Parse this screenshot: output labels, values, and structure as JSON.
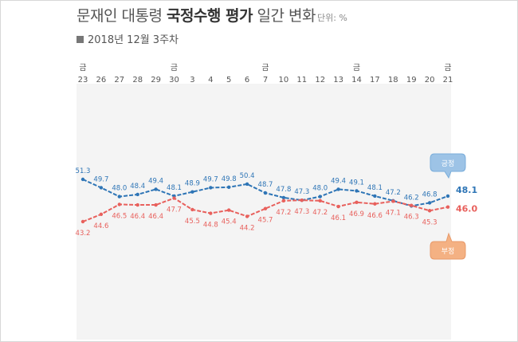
{
  "header": {
    "title_pre": "문재인 대통령 ",
    "title_bold": "국정수행 평가",
    "title_post": " 일간 변화",
    "unit": "단위: %",
    "subtitle": "2018년 12월 3주차"
  },
  "colors": {
    "positive": "#2E75B6",
    "negative": "#E8605C",
    "positive_bubble": "#9DC3E6",
    "negative_bubble": "#F4B183"
  },
  "chart_data": {
    "type": "line",
    "categories": [
      "23",
      "26",
      "27",
      "28",
      "29",
      "30",
      "3",
      "4",
      "5",
      "6",
      "7",
      "10",
      "11",
      "12",
      "13",
      "14",
      "17",
      "18",
      "19",
      "20",
      "21"
    ],
    "weekday_marks": [
      "금",
      "",
      "",
      "",
      "",
      "금",
      "",
      "",
      "",
      "",
      "금",
      "",
      "",
      "",
      "",
      "금",
      "",
      "",
      "",
      "",
      "금"
    ],
    "series": [
      {
        "name": "긍정",
        "values": [
          51.3,
          49.7,
          48.0,
          48.4,
          49.4,
          48.1,
          48.9,
          49.7,
          49.8,
          50.4,
          48.7,
          47.8,
          47.3,
          48.0,
          49.4,
          49.1,
          48.1,
          47.2,
          46.2,
          46.8,
          48.1
        ]
      },
      {
        "name": "부정",
        "values": [
          43.2,
          44.6,
          46.5,
          46.4,
          46.4,
          47.7,
          45.5,
          44.8,
          45.4,
          44.2,
          45.7,
          47.2,
          47.3,
          47.2,
          46.1,
          46.9,
          46.6,
          47.1,
          46.3,
          45.3,
          46.0
        ]
      }
    ],
    "labels": {
      "긍정": [
        "51.3",
        "49.7",
        "48.0",
        "48.4",
        "49.4",
        "48.1",
        "48.9",
        "49.7",
        "49.8",
        "50.4",
        "48.7",
        "47.8",
        "47.3",
        "48.0",
        "49.4",
        "49.1",
        "48.1",
        "47.2",
        "46.2",
        "46.8",
        "48.1"
      ],
      "부정": [
        "43.2",
        "44.6",
        "46.5",
        "46.4",
        "46.4",
        "47.7",
        "45.5",
        "44.8",
        "45.4",
        "44.2",
        "45.7",
        "47.2",
        "47.3",
        "47.2",
        "46.1",
        "46.9",
        "46.6",
        "47.1",
        "46.3",
        "45.3",
        "46.0"
      ]
    },
    "ylim": [
      40,
      55
    ],
    "grid": false
  }
}
